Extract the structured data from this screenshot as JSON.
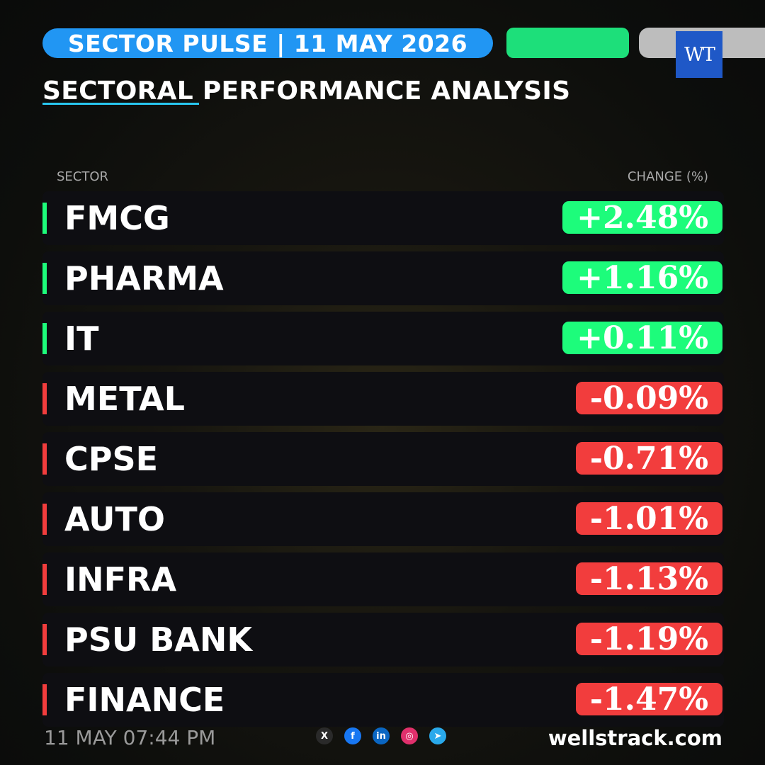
{
  "header": {
    "title": "SECTOR PULSE | 11 MAY 2026",
    "subtitle": "SECTORAL PERFORMANCE ANALYSIS",
    "logo_text": "WT"
  },
  "table": {
    "col_sector": "SECTOR",
    "col_change": "CHANGE (%)",
    "rows": [
      {
        "sector": "FMCG",
        "change": "+2.48%",
        "direction": "up"
      },
      {
        "sector": "PHARMA",
        "change": "+1.16%",
        "direction": "up"
      },
      {
        "sector": "IT",
        "change": "+0.11%",
        "direction": "up"
      },
      {
        "sector": "METAL",
        "change": "-0.09%",
        "direction": "down"
      },
      {
        "sector": "CPSE",
        "change": "-0.71%",
        "direction": "down"
      },
      {
        "sector": "AUTO",
        "change": "-1.01%",
        "direction": "down"
      },
      {
        "sector": "INFRA",
        "change": "-1.13%",
        "direction": "down"
      },
      {
        "sector": "PSU BANK",
        "change": "-1.19%",
        "direction": "down"
      },
      {
        "sector": "FINANCE",
        "change": "-1.47%",
        "direction": "down"
      }
    ]
  },
  "footer": {
    "timestamp": "11 MAY 07:44 PM",
    "website": "wellstrack.com",
    "socials": [
      {
        "icon": "x-icon",
        "glyph": "X",
        "color": "#2a2a2a"
      },
      {
        "icon": "facebook-icon",
        "glyph": "f",
        "color": "#1877f2"
      },
      {
        "icon": "linkedin-icon",
        "glyph": "in",
        "color": "#0a66c2"
      },
      {
        "icon": "instagram-icon",
        "glyph": "◎",
        "color": "#e1306c"
      },
      {
        "icon": "telegram-icon",
        "glyph": "➤",
        "color": "#29a9eb"
      }
    ]
  },
  "colors": {
    "accent_blue": "#2196f3",
    "positive": "#1dfc7b",
    "negative": "#f23d3d"
  }
}
